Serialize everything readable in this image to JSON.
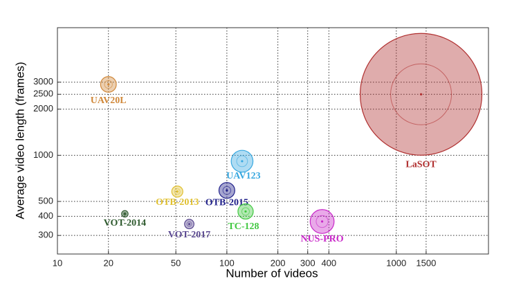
{
  "chart_data": {
    "type": "bubble",
    "xlabel": "Number of videos",
    "ylabel": "Average video length (frames)",
    "x_log": true,
    "y_log": true,
    "grid": true,
    "xlim": [
      10,
      3500
    ],
    "ylim": [
      227,
      6800
    ],
    "xticks": [
      10,
      20,
      50,
      100,
      200,
      300,
      400,
      1000,
      1500
    ],
    "yticks": [
      300,
      400,
      500,
      1000,
      2000,
      2500,
      3000
    ],
    "series": [
      {
        "name": "UAV20L",
        "color": "#d0883a",
        "x": [
          20
        ],
        "values": [
          2900
        ],
        "sizes": [
          58000
        ]
      },
      {
        "name": "LaSOT",
        "color": "#b03030",
        "x": [
          1400
        ],
        "values": [
          2500
        ],
        "sizes": [
          3500000
        ]
      },
      {
        "name": "UAV123",
        "color": "#38a8e0",
        "x": [
          123
        ],
        "values": [
          915
        ],
        "sizes": [
          112000
        ]
      },
      {
        "name": "OTB-2015",
        "color": "#20208a",
        "x": [
          100
        ],
        "values": [
          590
        ],
        "sizes": [
          59000
        ]
      },
      {
        "name": "TC-128",
        "color": "#40c840",
        "x": [
          129
        ],
        "values": [
          430
        ],
        "sizes": [
          55000
        ]
      },
      {
        "name": "NUS-PRO",
        "color": "#c828c8",
        "x": [
          365
        ],
        "values": [
          370
        ],
        "sizes": [
          135000
        ]
      },
      {
        "name": "OTB-2013",
        "color": "#e0c030",
        "x": [
          51
        ],
        "values": [
          580
        ],
        "sizes": [
          29000
        ]
      },
      {
        "name": "VOT-2014",
        "color": "#2e5a2e",
        "x": [
          25
        ],
        "values": [
          415
        ],
        "sizes": [
          10000
        ]
      },
      {
        "name": "VOT-2017",
        "color": "#5a4890",
        "x": [
          60
        ],
        "values": [
          356
        ],
        "sizes": [
          21000
        ]
      }
    ]
  }
}
